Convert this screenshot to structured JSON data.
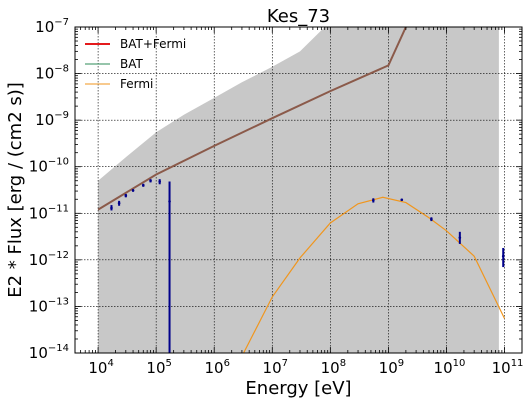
{
  "chart_data": {
    "type": "line",
    "title": "Kes_73",
    "xlabel": "Energy [eV]",
    "ylabel": "E2 * Flux [erg / (cm2 s)]",
    "xscale": "log",
    "yscale": "log",
    "xlim": [
      4000,
      200000000000.0
    ],
    "ylim": [
      1e-14,
      1e-07
    ],
    "x_ticks": [
      {
        "value": 10000.0,
        "base": "10",
        "exp": "4"
      },
      {
        "value": 100000.0,
        "base": "10",
        "exp": "5"
      },
      {
        "value": 1000000.0,
        "base": "10",
        "exp": "6"
      },
      {
        "value": 10000000.0,
        "base": "10",
        "exp": "7"
      },
      {
        "value": 100000000.0,
        "base": "10",
        "exp": "8"
      },
      {
        "value": 1000000000.0,
        "base": "10",
        "exp": "9"
      },
      {
        "value": 10000000000.0,
        "base": "10",
        "exp": "10"
      },
      {
        "value": 100000000000.0,
        "base": "10",
        "exp": "11"
      }
    ],
    "y_ticks": [
      {
        "value": 1e-14,
        "base": "10",
        "exp": "−14"
      },
      {
        "value": 1e-13,
        "base": "10",
        "exp": "−13"
      },
      {
        "value": 1e-12,
        "base": "10",
        "exp": "−12"
      },
      {
        "value": 1e-11,
        "base": "10",
        "exp": "−11"
      },
      {
        "value": 1e-10,
        "base": "10",
        "exp": "−10"
      },
      {
        "value": 1e-09,
        "base": "10",
        "exp": "−9"
      },
      {
        "value": 1e-08,
        "base": "10",
        "exp": "−8"
      },
      {
        "value": 1e-07,
        "base": "10",
        "exp": "−7"
      }
    ],
    "grid": true,
    "legend_position": "top-left",
    "legend": [
      {
        "name": "BAT+Fermi",
        "color": "#e41a1c"
      },
      {
        "name": "BAT",
        "color": "#2e8b57"
      },
      {
        "name": "Fermi",
        "color": "#f0961e"
      }
    ],
    "uncertainty_band": {
      "color": "#c8c8c8",
      "x": [
        10000.0,
        30000.0,
        100000.0,
        300000.0,
        1000000.0,
        3000000.0,
        10000000.0,
        30000000.0,
        80000000.0,
        80000000000.0
      ],
      "upper": [
        5e-11,
        1.6e-10,
        5.5e-10,
        1.3e-09,
        3e-09,
        6.5e-09,
        1.4e-08,
        3e-08,
        1e-07,
        1e-07
      ],
      "lower": [
        1e-14,
        1e-14,
        1e-14,
        1e-14,
        1e-14,
        1e-14,
        1e-14,
        1e-14,
        1e-14,
        1e-14
      ]
    },
    "series": [
      {
        "name": "BAT+Fermi",
        "kind": "powerlaw",
        "color": "#8b5a4a",
        "x": [
          10000.0,
          100000.0,
          1000000.0,
          10000000.0,
          100000000.0,
          1000000000.0,
          2000000000.0
        ],
        "y": [
          1.2e-11,
          6.8e-11,
          2.8e-10,
          1.1e-09,
          4.2e-09,
          1.5e-08,
          1e-07
        ]
      },
      {
        "name": "Fermi",
        "kind": "logparabola",
        "color": "#f0961e",
        "x": [
          3200000.0,
          10000000.0,
          30000000.0,
          100000000.0,
          300000000.0,
          800000000.0,
          2000000000.0,
          5000000000.0,
          10000000000.0,
          30000000000.0,
          100000000000.0
        ],
        "y": [
          1e-14,
          1.6e-13,
          1.1e-12,
          6.2e-12,
          1.6e-11,
          2.2e-11,
          1.7e-11,
          8e-12,
          4.2e-12,
          1.2e-12,
          5.5e-14
        ]
      }
    ],
    "data_points": {
      "color": "#00008b",
      "points": [
        {
          "x": 17000.0,
          "y": 1.3e-11,
          "ylo": 1.15e-11,
          "yhi": 1.5e-11
        },
        {
          "x": 23000.0,
          "y": 1.65e-11,
          "ylo": 1.45e-11,
          "yhi": 1.85e-11
        },
        {
          "x": 30000.0,
          "y": 2.4e-11,
          "ylo": 2.2e-11,
          "yhi": 2.6e-11
        },
        {
          "x": 40000.0,
          "y": 3.1e-11,
          "ylo": 2.9e-11,
          "yhi": 3.3e-11
        },
        {
          "x": 60000.0,
          "y": 4e-11,
          "ylo": 3.7e-11,
          "yhi": 4.3e-11
        },
        {
          "x": 80000.0,
          "y": 5e-11,
          "ylo": 4.6e-11,
          "yhi": 5.4e-11
        },
        {
          "x": 115000.0,
          "y": 4.8e-11,
          "ylo": 4.2e-11,
          "yhi": 5.4e-11
        },
        {
          "x": 170000.0,
          "y": 1.8e-11,
          "ylo": 1e-14,
          "yhi": 4.8e-11
        },
        {
          "x": 550000000.0,
          "y": 1.9e-11,
          "ylo": 1.7e-11,
          "yhi": 2.1e-11
        },
        {
          "x": 1700000000.0,
          "y": 1.95e-11,
          "ylo": 1.85e-11,
          "yhi": 2.05e-11
        },
        {
          "x": 5500000000.0,
          "y": 7.5e-12,
          "ylo": 6.8e-12,
          "yhi": 8.2e-12
        },
        {
          "x": 17000000000.0,
          "y": 3e-12,
          "ylo": 2.2e-12,
          "yhi": 4e-12
        },
        {
          "x": 95000000000.0,
          "y": 1.2e-12,
          "ylo": 7e-13,
          "yhi": 1.8e-12
        }
      ]
    }
  }
}
